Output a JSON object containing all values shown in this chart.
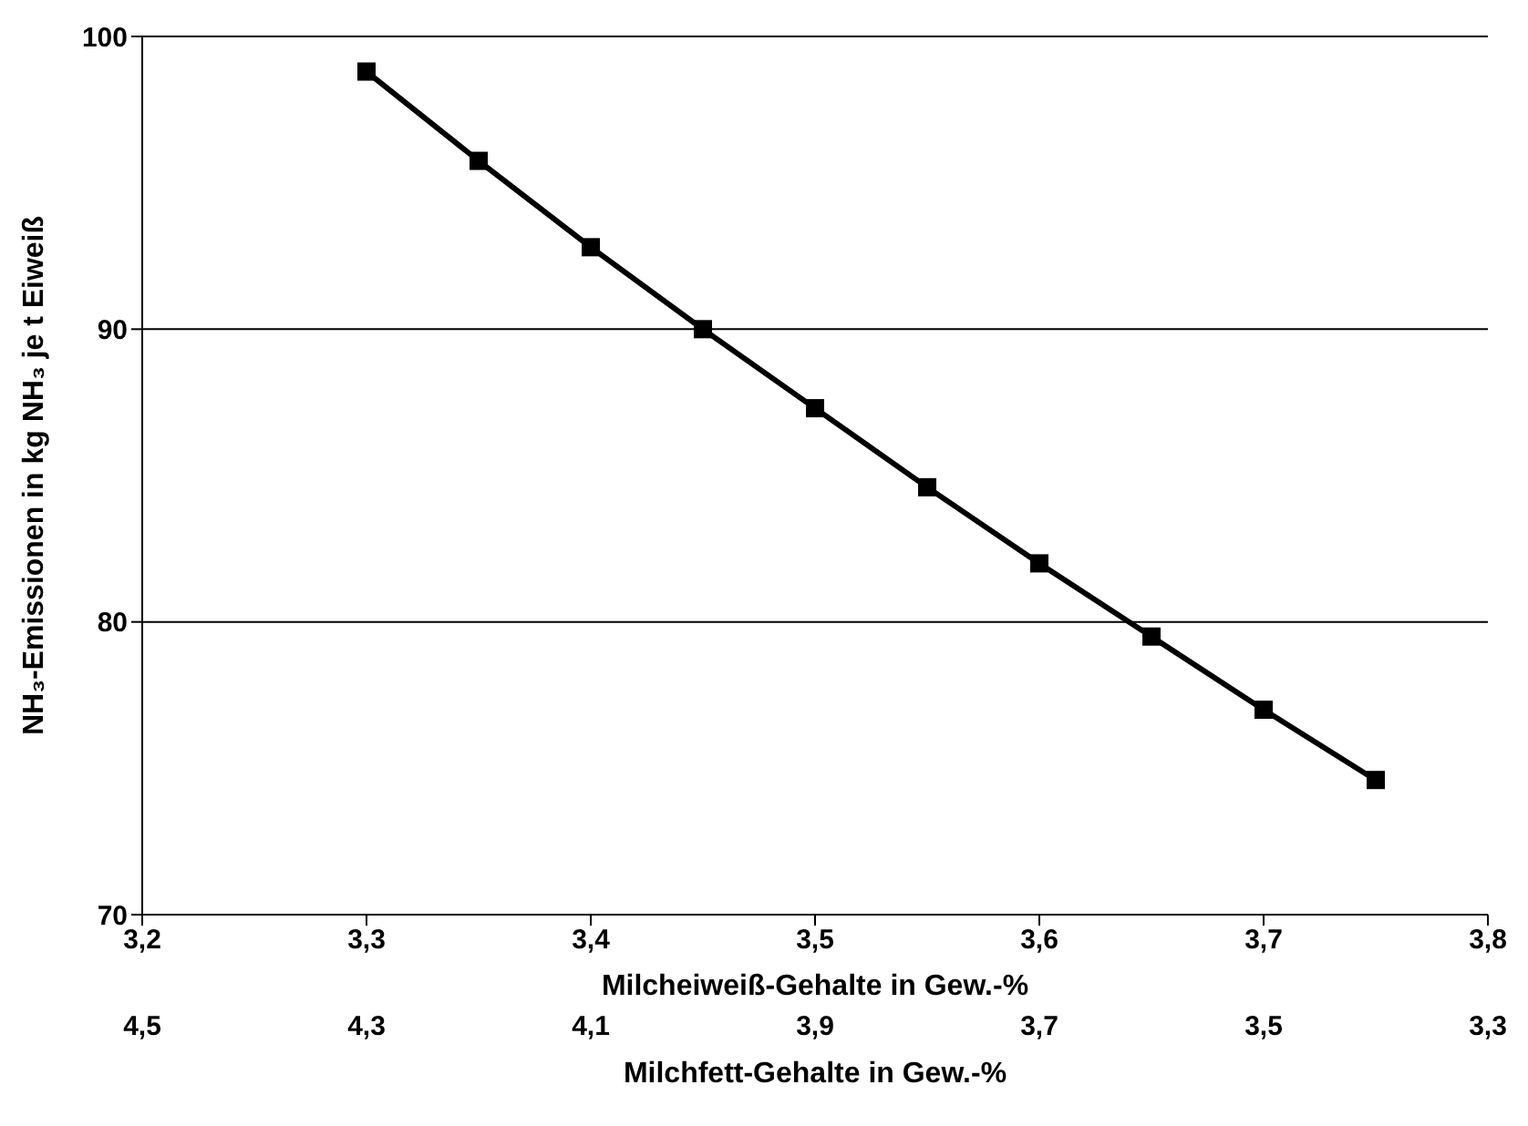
{
  "chart_data": {
    "type": "line",
    "xlabel": "Milcheiweiß-Gehalte in Gew.-%",
    "x2label": "Milchfett-Gehalte in Gew.-%",
    "ylabel": "NH₃-Emissionen in kg NH₃ je t Eiweiß",
    "x": [
      3.3,
      3.35,
      3.4,
      3.45,
      3.5,
      3.55,
      3.6,
      3.65,
      3.7,
      3.75
    ],
    "series": [
      {
        "color": "#000000",
        "values": [
          98.8,
          95.75,
          92.8,
          90.0,
          87.3,
          84.6,
          82.0,
          79.5,
          77.0,
          74.6
        ]
      }
    ],
    "xlim": [
      3.2,
      3.8
    ],
    "xticks": [
      {
        "value": 3.2,
        "label": "3,2"
      },
      {
        "value": 3.3,
        "label": "3,3"
      },
      {
        "value": 3.4,
        "label": "3,4"
      },
      {
        "value": 3.5,
        "label": "3,5"
      },
      {
        "value": 3.6,
        "label": "3,6"
      },
      {
        "value": 3.7,
        "label": "3,7"
      },
      {
        "value": 3.8,
        "label": "3,8"
      }
    ],
    "x2lim": [
      4.5,
      3.3
    ],
    "x2ticks": [
      {
        "value": 4.5,
        "label": "4,5"
      },
      {
        "value": 4.3,
        "label": "4,3"
      },
      {
        "value": 4.1,
        "label": "4,1"
      },
      {
        "value": 3.9,
        "label": "3,9"
      },
      {
        "value": 3.7,
        "label": "3,7"
      },
      {
        "value": 3.5,
        "label": "3,5"
      },
      {
        "value": 3.3,
        "label": "3,3"
      }
    ],
    "ylim": [
      70,
      100
    ],
    "yticks": [
      70,
      80,
      90,
      100
    ],
    "grid": "y",
    "marker": "square",
    "line_style": "solid"
  }
}
